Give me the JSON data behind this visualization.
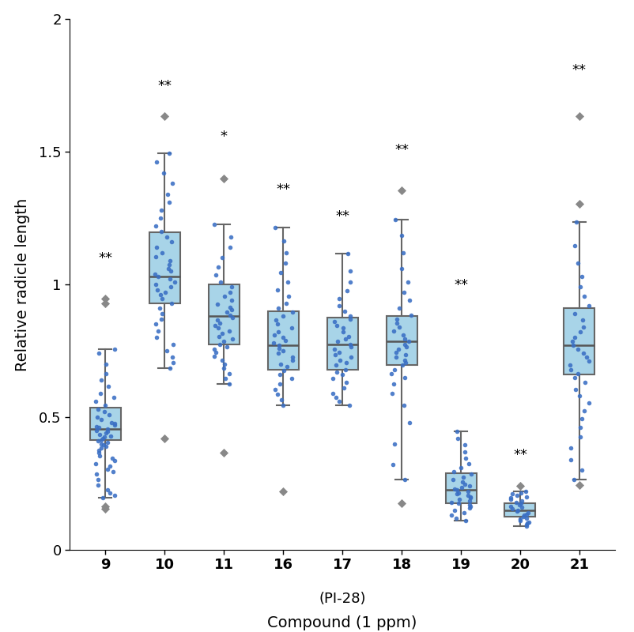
{
  "categories": [
    "9",
    "10",
    "11",
    "16",
    "17",
    "18",
    "19",
    "20",
    "21"
  ],
  "significance": [
    "**",
    "**",
    "*",
    "**",
    "**",
    "**",
    "**",
    "**",
    "**"
  ],
  "box_stats": {
    "9": {
      "q1": 0.415,
      "median": 0.455,
      "q3": 0.535,
      "whislo": 0.195,
      "whishi": 0.755
    },
    "10": {
      "q1": 0.93,
      "median": 1.03,
      "q3": 1.195,
      "whislo": 0.685,
      "whishi": 1.495
    },
    "11": {
      "q1": 0.775,
      "median": 0.88,
      "q3": 1.0,
      "whislo": 0.625,
      "whishi": 1.225
    },
    "16": {
      "q1": 0.68,
      "median": 0.77,
      "q3": 0.9,
      "whislo": 0.545,
      "whishi": 1.215
    },
    "17": {
      "q1": 0.68,
      "median": 0.775,
      "q3": 0.875,
      "whislo": 0.545,
      "whishi": 1.115
    },
    "18": {
      "q1": 0.695,
      "median": 0.785,
      "q3": 0.88,
      "whislo": 0.265,
      "whishi": 1.245
    },
    "19": {
      "q1": 0.175,
      "median": 0.225,
      "q3": 0.29,
      "whislo": 0.11,
      "whishi": 0.445
    },
    "20": {
      "q1": 0.125,
      "median": 0.15,
      "q3": 0.175,
      "whislo": 0.09,
      "whishi": 0.22
    },
    "21": {
      "q1": 0.66,
      "median": 0.77,
      "q3": 0.91,
      "whislo": 0.265,
      "whishi": 1.235
    }
  },
  "flier_data": {
    "9": {
      "low": [
        0.155,
        0.165
      ],
      "high": [
        0.93,
        0.945
      ]
    },
    "10": {
      "low": [
        0.42
      ],
      "high": [
        1.635
      ]
    },
    "11": {
      "low": [
        0.365
      ],
      "high": [
        1.4
      ]
    },
    "16": {
      "low": [
        0.22
      ],
      "high": []
    },
    "17": {
      "low": [],
      "high": []
    },
    "18": {
      "low": [
        0.175
      ],
      "high": [
        1.355
      ]
    },
    "19": {
      "low": [],
      "high": []
    },
    "20": {
      "low": [],
      "high": [
        0.24
      ]
    },
    "21": {
      "low": [
        0.245
      ],
      "high": [
        1.305,
        1.635
      ]
    }
  },
  "jitter_data": {
    "9": [
      0.195,
      0.205,
      0.215,
      0.225,
      0.245,
      0.265,
      0.285,
      0.295,
      0.305,
      0.315,
      0.325,
      0.335,
      0.345,
      0.355,
      0.365,
      0.375,
      0.385,
      0.39,
      0.395,
      0.4,
      0.405,
      0.41,
      0.415,
      0.42,
      0.425,
      0.43,
      0.435,
      0.44,
      0.445,
      0.45,
      0.455,
      0.46,
      0.465,
      0.47,
      0.475,
      0.48,
      0.49,
      0.5,
      0.51,
      0.52,
      0.53,
      0.545,
      0.56,
      0.575,
      0.59,
      0.615,
      0.64,
      0.665,
      0.7,
      0.74,
      0.755
    ],
    "10": [
      0.685,
      0.705,
      0.725,
      0.75,
      0.775,
      0.8,
      0.825,
      0.85,
      0.87,
      0.89,
      0.91,
      0.93,
      0.945,
      0.96,
      0.97,
      0.98,
      0.99,
      1.0,
      1.01,
      1.02,
      1.03,
      1.04,
      1.05,
      1.06,
      1.075,
      1.09,
      1.105,
      1.12,
      1.14,
      1.16,
      1.18,
      1.2,
      1.22,
      1.25,
      1.28,
      1.31,
      1.34,
      1.38,
      1.42,
      1.46,
      1.495
    ],
    "11": [
      0.625,
      0.645,
      0.665,
      0.685,
      0.7,
      0.715,
      0.73,
      0.745,
      0.755,
      0.765,
      0.775,
      0.785,
      0.795,
      0.805,
      0.815,
      0.825,
      0.835,
      0.845,
      0.855,
      0.865,
      0.875,
      0.885,
      0.895,
      0.905,
      0.915,
      0.925,
      0.94,
      0.955,
      0.97,
      0.99,
      1.01,
      1.035,
      1.065,
      1.1,
      1.14,
      1.18,
      1.225
    ],
    "16": [
      0.545,
      0.565,
      0.585,
      0.605,
      0.625,
      0.645,
      0.66,
      0.675,
      0.69,
      0.7,
      0.715,
      0.725,
      0.74,
      0.75,
      0.76,
      0.77,
      0.78,
      0.79,
      0.8,
      0.81,
      0.82,
      0.835,
      0.85,
      0.865,
      0.88,
      0.895,
      0.91,
      0.93,
      0.955,
      0.98,
      1.01,
      1.045,
      1.08,
      1.12,
      1.165,
      1.215
    ],
    "17": [
      0.545,
      0.56,
      0.575,
      0.59,
      0.61,
      0.63,
      0.645,
      0.66,
      0.67,
      0.68,
      0.695,
      0.705,
      0.715,
      0.725,
      0.735,
      0.745,
      0.755,
      0.765,
      0.775,
      0.785,
      0.795,
      0.805,
      0.82,
      0.835,
      0.845,
      0.86,
      0.87,
      0.88,
      0.9,
      0.92,
      0.945,
      0.975,
      1.01,
      1.05,
      1.115
    ],
    "18": [
      0.265,
      0.32,
      0.4,
      0.48,
      0.545,
      0.59,
      0.625,
      0.65,
      0.665,
      0.68,
      0.695,
      0.705,
      0.715,
      0.725,
      0.735,
      0.745,
      0.755,
      0.765,
      0.775,
      0.785,
      0.795,
      0.81,
      0.825,
      0.84,
      0.855,
      0.87,
      0.885,
      0.91,
      0.94,
      0.97,
      1.01,
      1.06,
      1.12,
      1.185,
      1.245
    ],
    "19": [
      0.11,
      0.12,
      0.13,
      0.14,
      0.15,
      0.158,
      0.165,
      0.17,
      0.175,
      0.18,
      0.185,
      0.19,
      0.195,
      0.2,
      0.205,
      0.21,
      0.215,
      0.22,
      0.225,
      0.23,
      0.235,
      0.24,
      0.248,
      0.256,
      0.265,
      0.275,
      0.285,
      0.295,
      0.31,
      0.325,
      0.345,
      0.37,
      0.395,
      0.42,
      0.445
    ],
    "20": [
      0.09,
      0.095,
      0.1,
      0.105,
      0.11,
      0.115,
      0.12,
      0.125,
      0.13,
      0.135,
      0.14,
      0.145,
      0.15,
      0.155,
      0.16,
      0.165,
      0.17,
      0.175,
      0.18,
      0.185,
      0.19,
      0.195,
      0.2,
      0.205,
      0.21,
      0.215,
      0.22
    ],
    "21": [
      0.265,
      0.3,
      0.34,
      0.385,
      0.425,
      0.46,
      0.495,
      0.525,
      0.555,
      0.58,
      0.605,
      0.63,
      0.65,
      0.665,
      0.68,
      0.695,
      0.71,
      0.725,
      0.74,
      0.755,
      0.77,
      0.785,
      0.8,
      0.82,
      0.84,
      0.865,
      0.89,
      0.92,
      0.955,
      0.99,
      1.03,
      1.08,
      1.145,
      1.235
    ]
  },
  "sig_y": {
    "9": 1.07,
    "10": 1.72,
    "11": 1.53,
    "16": 1.33,
    "17": 1.23,
    "18": 1.48,
    "19": 0.97,
    "20": 0.33,
    "21": 1.78
  },
  "box_color": "#A8D4E8",
  "box_edge_color": "#666666",
  "dot_color": "#3A6FC4",
  "flier_color": "#888888",
  "median_color": "#555555",
  "whisker_color": "#666666",
  "ylabel": "Relative radicle length",
  "xlabel": "Compound (1 ppm)",
  "xlabel2": "(PI-28)",
  "ylim": [
    0,
    2.0
  ],
  "yticks": [
    0,
    0.5,
    1.0,
    1.5,
    2.0
  ],
  "significance_fontsize": 13,
  "axis_label_fontsize": 14,
  "tick_label_fontsize": 13
}
